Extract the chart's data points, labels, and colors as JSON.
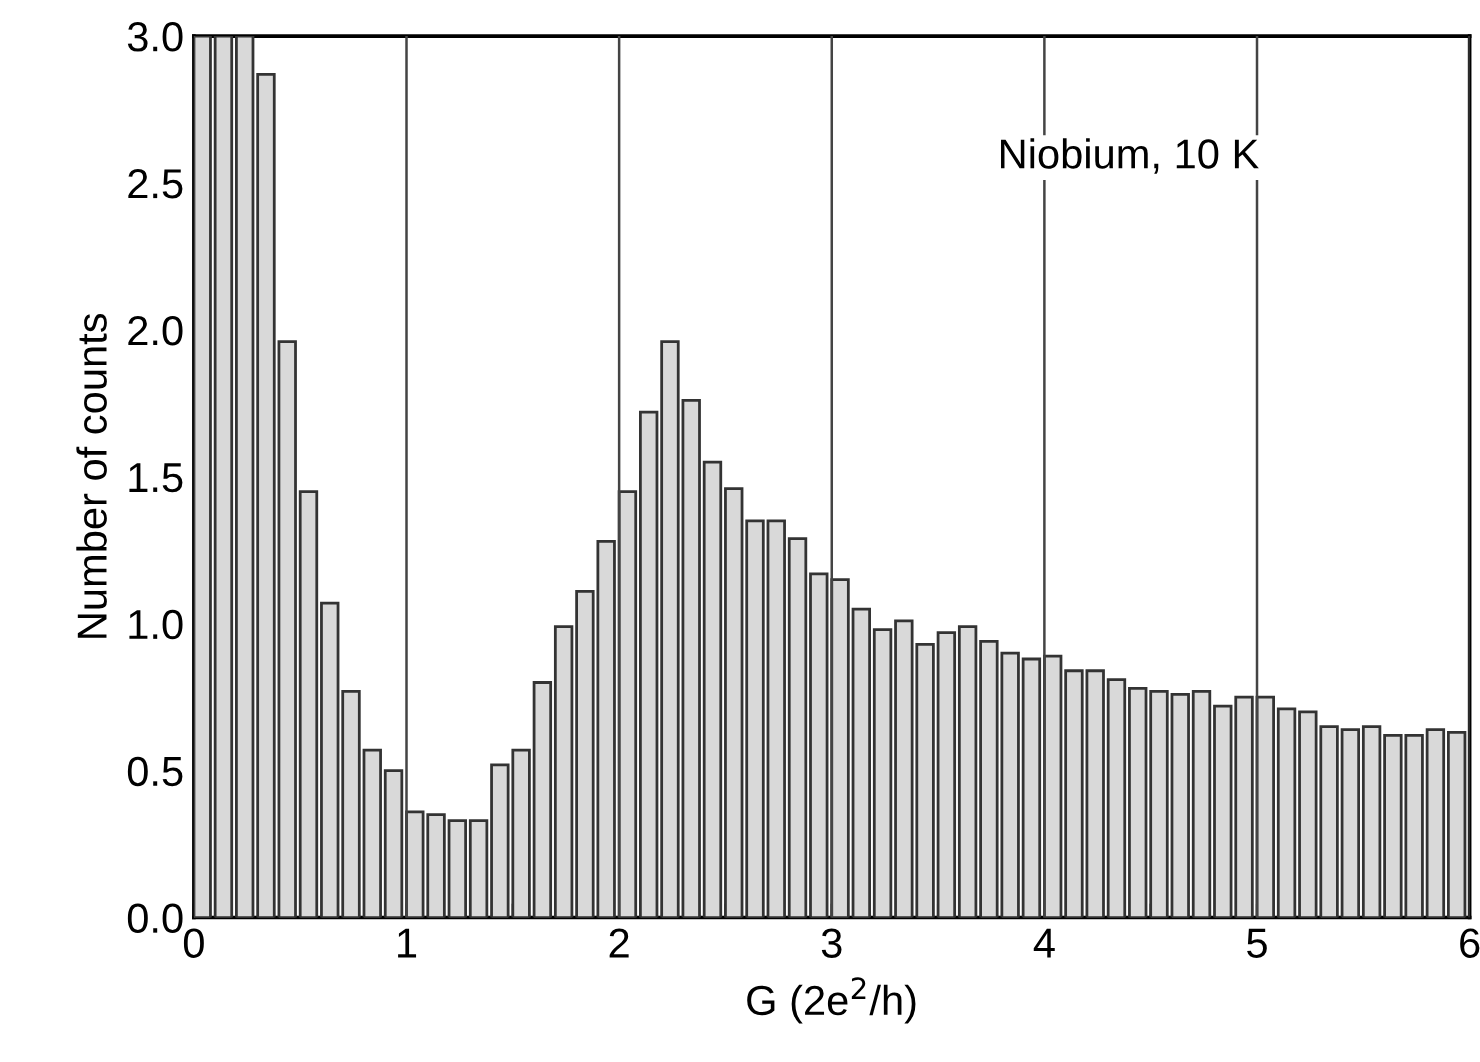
{
  "chart_data": {
    "type": "histogram",
    "xlabel": "G (2e$^{2}$/h)",
    "ylabel": "Number of counts",
    "annotations": [
      "Niobium, 10 K"
    ],
    "bins": [
      0,
      0.1,
      0.2,
      0.3,
      0.4,
      0.5,
      0.6,
      0.7,
      0.8,
      0.9,
      1,
      1.1,
      1.2,
      1.3,
      1.4,
      1.5,
      1.6,
      1.7,
      1.8,
      1.9,
      2,
      2.1,
      2.2,
      2.3,
      2.4,
      2.5,
      2.6,
      2.7,
      2.8,
      2.9,
      3,
      3.1,
      3.2,
      3.3,
      3.4,
      3.5,
      3.6,
      3.7,
      3.8,
      3.9,
      4,
      4.1,
      4.2,
      4.3,
      4.4,
      4.5,
      4.6,
      4.7,
      4.8,
      4.9,
      5,
      5.1,
      5.2,
      5.3,
      5.4,
      5.5,
      5.6,
      5.7,
      5.8,
      5.9,
      6
    ],
    "values": [
      3.0,
      3.0,
      3.0,
      2.87,
      1.96,
      1.45,
      1.07,
      0.77,
      0.57,
      0.5,
      0.36,
      0.35,
      0.33,
      0.33,
      0.52,
      0.57,
      0.8,
      0.99,
      1.11,
      1.28,
      1.45,
      1.72,
      1.96,
      1.76,
      1.55,
      1.46,
      1.35,
      1.35,
      1.29,
      1.17,
      1.15,
      1.05,
      0.98,
      1.01,
      0.93,
      0.97,
      0.99,
      0.94,
      0.9,
      0.88,
      0.89,
      0.84,
      0.84,
      0.81,
      0.78,
      0.77,
      0.76,
      0.77,
      0.72,
      0.75,
      0.75,
      0.71,
      0.7,
      0.65,
      0.64,
      0.65,
      0.62,
      0.62,
      0.64,
      0.63
    ],
    "color": "#d9d9d9",
    "xlim": [
      0,
      6
    ],
    "ylim": [
      0,
      3.0
    ],
    "xticks": [
      0,
      {
        "value": 0.5,
        "label": null
      },
      1,
      {
        "value": 1.5,
        "label": null
      },
      2,
      {
        "value": 2.5,
        "label": null
      },
      3,
      {
        "value": 3.5,
        "label": null
      },
      4,
      {
        "value": 4.5,
        "label": null
      },
      5,
      {
        "value": 5.5,
        "label": null
      },
      6
    ],
    "yticks": [
      {
        "value": 0,
        "label": "0.0"
      },
      {
        "value": 0.5,
        "label": "0.5"
      },
      {
        "value": 1,
        "label": "1.0"
      },
      {
        "value": 1.5,
        "label": "1.5"
      },
      {
        "value": 2,
        "label": "2.0"
      },
      {
        "value": 2.5,
        "label": "2.5"
      },
      {
        "value": 3,
        "label": "3.0"
      }
    ],
    "grid": "x",
    "legend": false
  }
}
